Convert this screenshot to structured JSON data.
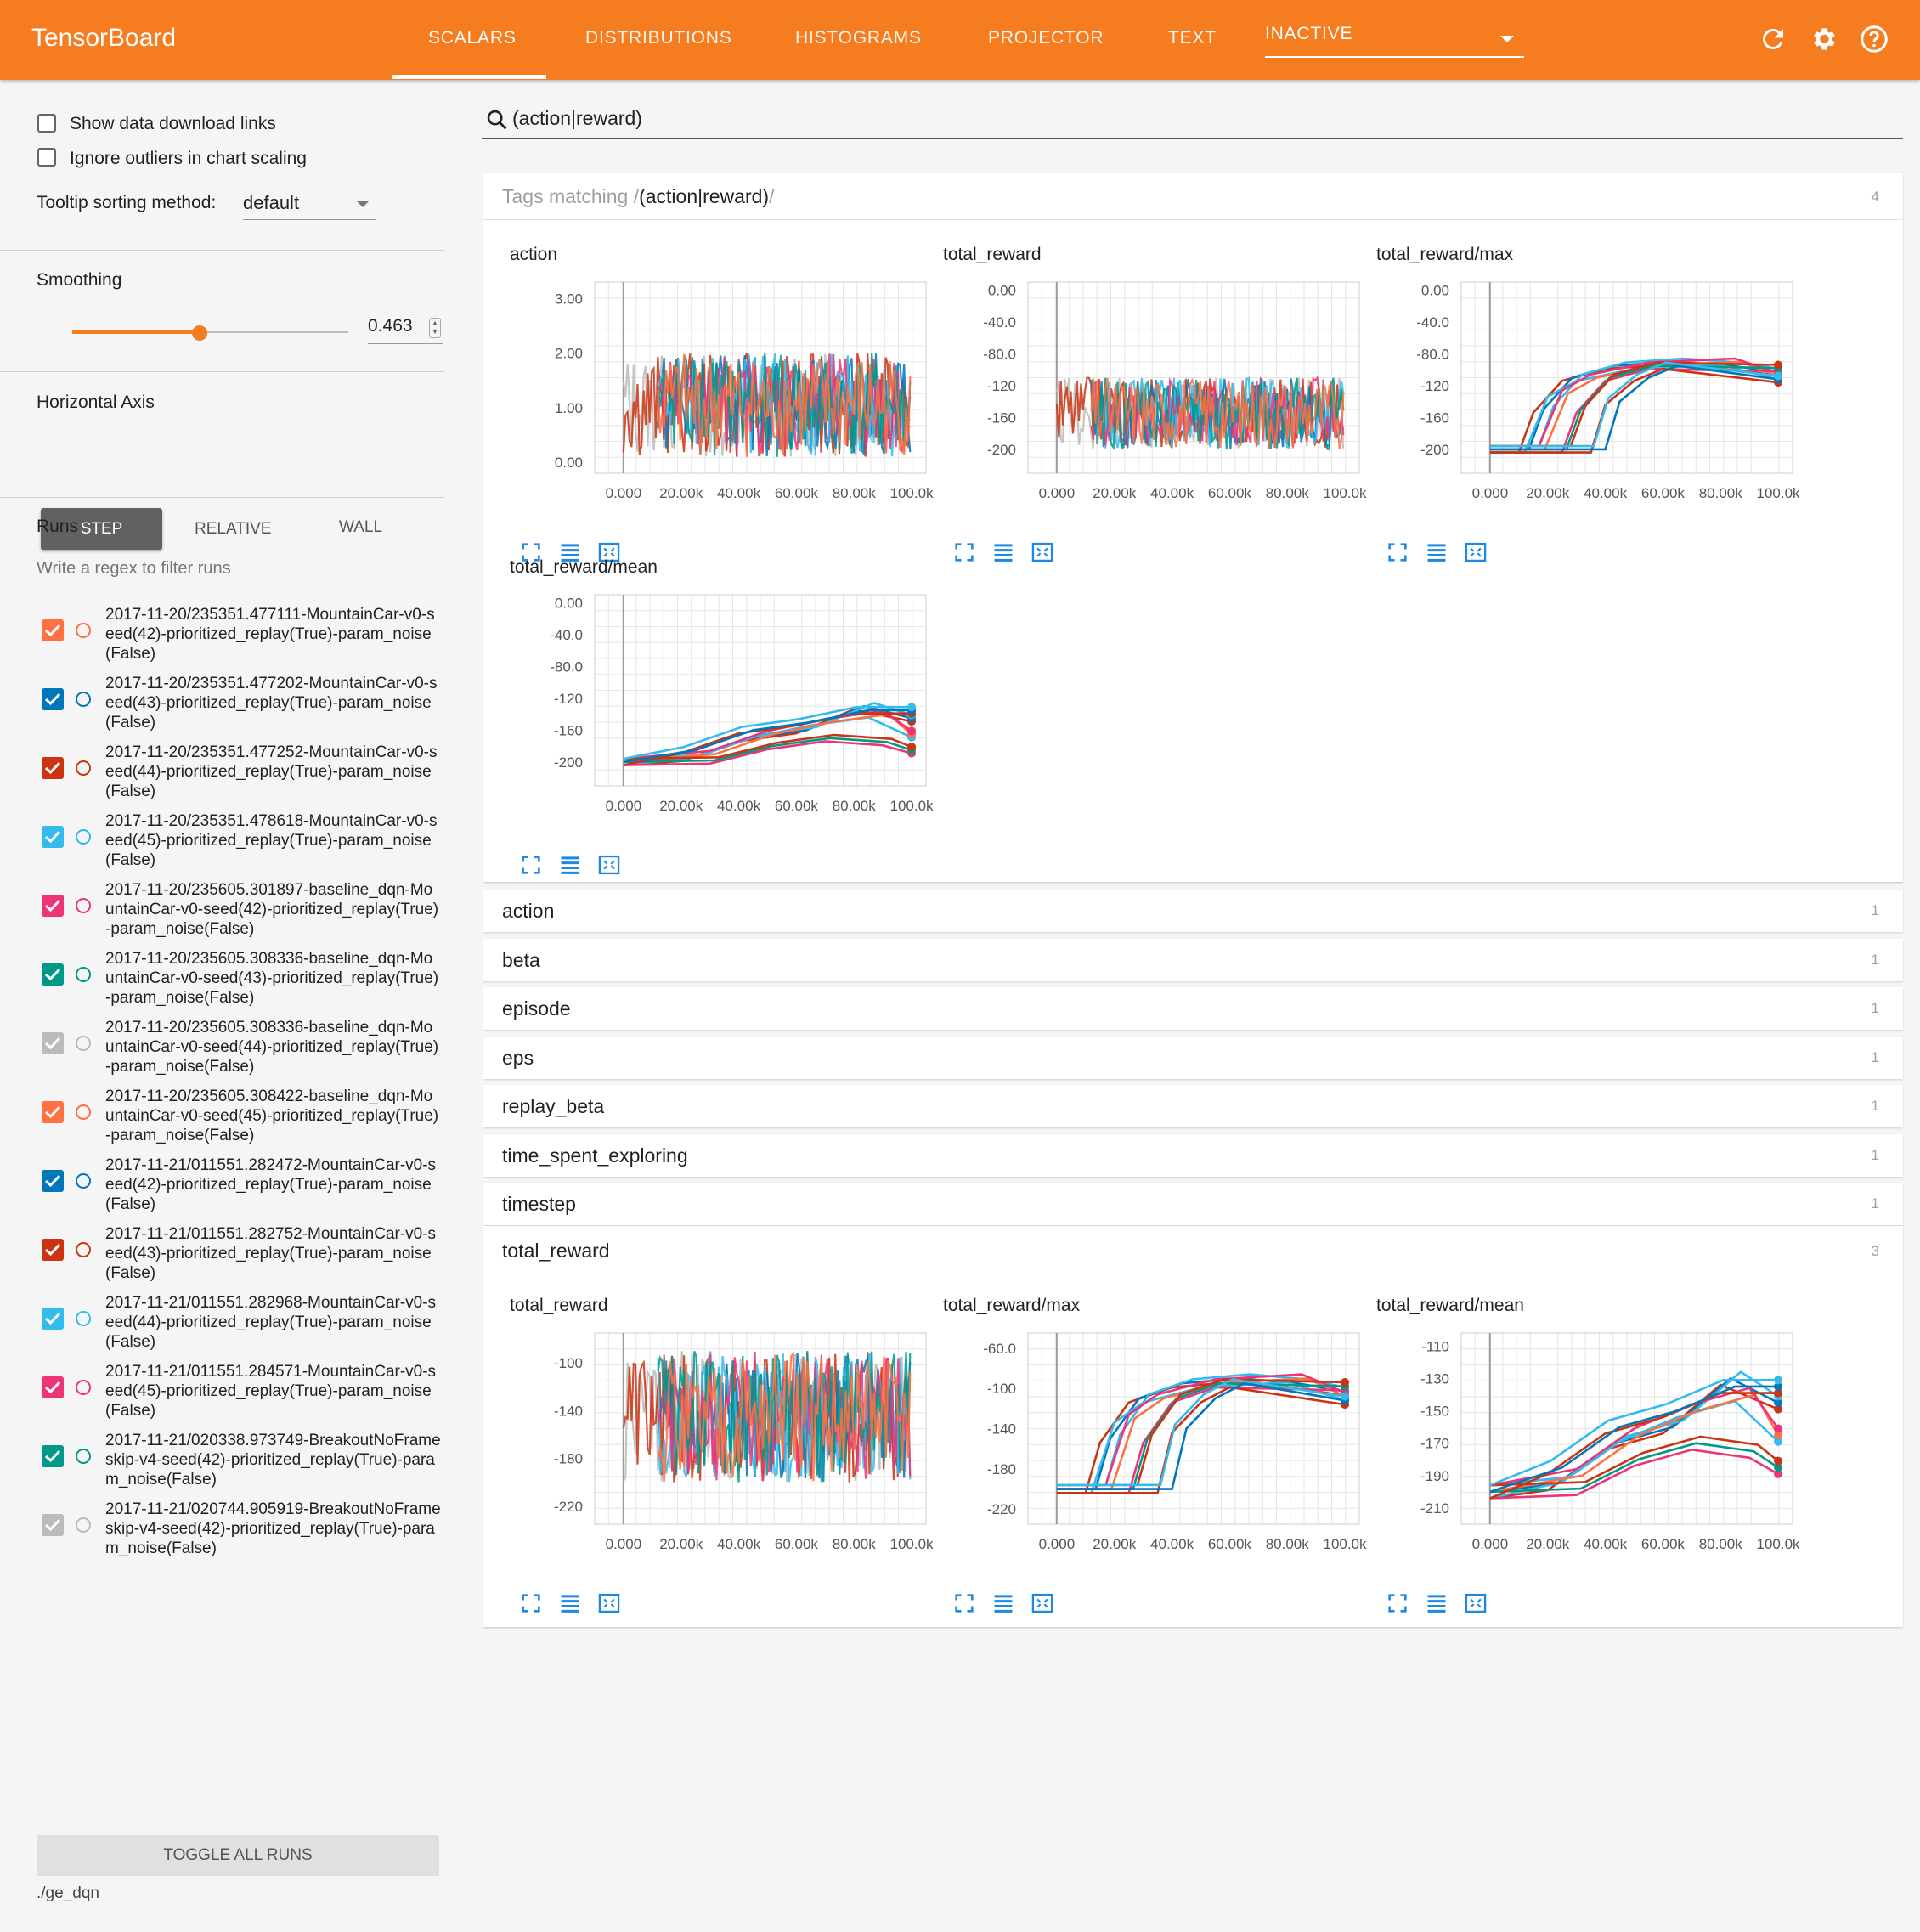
{
  "header": {
    "brand": "TensorBoard",
    "tabs": [
      "SCALARS",
      "DISTRIBUTIONS",
      "HISTOGRAMS",
      "PROJECTOR",
      "TEXT"
    ],
    "active_tab": "SCALARS",
    "inactive_label": "INACTIVE",
    "icons": [
      "refresh-icon",
      "settings-icon",
      "help-icon"
    ]
  },
  "sidebar": {
    "show_download_links": "Show data download links",
    "ignore_outliers": "Ignore outliers in chart scaling",
    "tooltip_label": "Tooltip sorting method:",
    "tooltip_value": "default",
    "smoothing_label": "Smoothing",
    "smoothing_value": "0.463",
    "smoothing_fraction": 0.463,
    "horizontal_axis_label": "Horizontal Axis",
    "axis_options": [
      "STEP",
      "RELATIVE",
      "WALL"
    ],
    "axis_selected": "STEP",
    "runs_label": "Runs",
    "runs_filter_placeholder": "Write a regex to filter runs",
    "runs": [
      {
        "name": "2017-11-20/235351.477111-MountainCar-v0-seed(42)-prioritized_replay(True)-param_noise(False)",
        "color": "#ff7043"
      },
      {
        "name": "2017-11-20/235351.477202-MountainCar-v0-seed(43)-prioritized_replay(True)-param_noise(False)",
        "color": "#0077bb"
      },
      {
        "name": "2017-11-20/235351.477252-MountainCar-v0-seed(44)-prioritized_replay(True)-param_noise(False)",
        "color": "#cc3311"
      },
      {
        "name": "2017-11-20/235351.478618-MountainCar-v0-seed(45)-prioritized_replay(True)-param_noise(False)",
        "color": "#33bbee"
      },
      {
        "name": "2017-11-20/235605.301897-baseline_dqn-MountainCar-v0-seed(42)-prioritized_replay(True)-param_noise(False)",
        "color": "#ee3377"
      },
      {
        "name": "2017-11-20/235605.308336-baseline_dqn-MountainCar-v0-seed(43)-prioritized_replay(True)-param_noise(False)",
        "color": "#009988"
      },
      {
        "name": "2017-11-20/235605.308336-baseline_dqn-MountainCar-v0-seed(44)-prioritized_replay(True)-param_noise(False)",
        "color": "#bbbbbb"
      },
      {
        "name": "2017-11-20/235605.308422-baseline_dqn-MountainCar-v0-seed(45)-prioritized_replay(True)-param_noise(False)",
        "color": "#ff7043"
      },
      {
        "name": "2017-11-21/011551.282472-MountainCar-v0-seed(42)-prioritized_replay(True)-param_noise(False)",
        "color": "#0077bb"
      },
      {
        "name": "2017-11-21/011551.282752-MountainCar-v0-seed(43)-prioritized_replay(True)-param_noise(False)",
        "color": "#cc3311"
      },
      {
        "name": "2017-11-21/011551.282968-MountainCar-v0-seed(44)-prioritized_replay(True)-param_noise(False)",
        "color": "#33bbee"
      },
      {
        "name": "2017-11-21/011551.284571-MountainCar-v0-seed(45)-prioritized_replay(True)-param_noise(False)",
        "color": "#ee3377"
      },
      {
        "name": "2017-11-21/020338.973749-BreakoutNoFrameskip-v4-seed(42)-prioritized_replay(True)-param_noise(False)",
        "color": "#009988"
      },
      {
        "name": "2017-11-21/020744.905919-BreakoutNoFrameskip-v4-seed(42)-prioritized_replay(True)-param_noise(False)",
        "color": "#bbbbbb"
      }
    ],
    "toggle_all": "TOGGLE ALL RUNS",
    "logdir": "./ge_dqn"
  },
  "main": {
    "search_value": "(action|reward)",
    "matching_prefix": "Tags matching /",
    "matching_regex": "(action|reward)",
    "matching_suffix": "/",
    "matching_count": "4",
    "groups": [
      {
        "name": "action",
        "count": "1"
      },
      {
        "name": "beta",
        "count": "1"
      },
      {
        "name": "episode",
        "count": "1"
      },
      {
        "name": "eps",
        "count": "1"
      },
      {
        "name": "replay_beta",
        "count": "1"
      },
      {
        "name": "time_spent_exploring",
        "count": "1"
      },
      {
        "name": "timestep",
        "count": "1"
      }
    ],
    "total_reward_group": {
      "name": "total_reward",
      "count": "3"
    }
  },
  "chart_data": [
    {
      "type": "line",
      "title": "action",
      "yticks": [
        "3.00",
        "2.00",
        "1.00",
        "0.00"
      ],
      "ylim": [
        -0.2,
        3.3
      ],
      "xticks": [
        "0.000",
        "20.00k",
        "40.00k",
        "60.00k",
        "80.00k",
        "100.0k"
      ],
      "xlim": [
        -10000,
        105000
      ],
      "noisy": true,
      "noise_range": [
        0.1,
        2.0
      ]
    },
    {
      "type": "line",
      "title": "total_reward",
      "yticks": [
        "0.00",
        "-40.0",
        "-80.0",
        "-120",
        "-160",
        "-200"
      ],
      "ylim": [
        -230,
        10
      ],
      "xticks": [
        "0.000",
        "20.00k",
        "40.00k",
        "60.00k",
        "80.00k",
        "100.0k"
      ],
      "xlim": [
        -10000,
        105000
      ],
      "noisy": true,
      "noise_range": [
        -200,
        -110
      ]
    },
    {
      "type": "line",
      "title": "total_reward/max",
      "yticks": [
        "0.00",
        "-40.0",
        "-80.0",
        "-120",
        "-160",
        "-200"
      ],
      "ylim": [
        -230,
        10
      ],
      "xticks": [
        "0.000",
        "20.00k",
        "40.00k",
        "60.00k",
        "80.00k",
        "100.0k"
      ],
      "xlim": [
        -10000,
        105000
      ],
      "series": [
        {
          "values": [
            [
              0,
              -200
            ],
            [
              10000,
              -200
            ],
            [
              15000,
              -150
            ],
            [
              25000,
              -110
            ],
            [
              40000,
              -95
            ],
            [
              60000,
              -90
            ],
            [
              80000,
              -95
            ],
            [
              100000,
              -103
            ]
          ]
        },
        {
          "values": [
            [
              0,
              -200
            ],
            [
              12000,
              -200
            ],
            [
              20000,
              -130
            ],
            [
              30000,
              -110
            ],
            [
              50000,
              -95
            ],
            [
              80000,
              -90
            ],
            [
              100000,
              -108
            ]
          ]
        },
        {
          "values": [
            [
              0,
              -200
            ],
            [
              25000,
              -200
            ],
            [
              30000,
              -150
            ],
            [
              40000,
              -110
            ],
            [
              55000,
              -95
            ],
            [
              100000,
              -98
            ]
          ]
        },
        {
          "values": [
            [
              0,
              -200
            ],
            [
              35000,
              -200
            ],
            [
              40000,
              -140
            ],
            [
              50000,
              -110
            ],
            [
              60000,
              -95
            ],
            [
              100000,
              -112
            ]
          ]
        }
      ]
    },
    {
      "type": "line",
      "title": "total_reward/mean",
      "yticks": [
        "0.00",
        "-40.0",
        "-80.0",
        "-120",
        "-160",
        "-200"
      ],
      "ylim": [
        -230,
        10
      ],
      "xticks": [
        "0.000",
        "20.00k",
        "40.00k",
        "60.00k",
        "80.00k",
        "100.0k"
      ],
      "xlim": [
        -10000,
        105000
      ],
      "series": [
        {
          "values": [
            [
              0,
              -200
            ],
            [
              20000,
              -195
            ],
            [
              40000,
              -170
            ],
            [
              60000,
              -160
            ],
            [
              80000,
              -130
            ],
            [
              100000,
              -145
            ]
          ]
        },
        {
          "values": [
            [
              0,
              -200
            ],
            [
              25000,
              -190
            ],
            [
              45000,
              -165
            ],
            [
              65000,
              -150
            ],
            [
              85000,
              -140
            ],
            [
              100000,
              -165
            ]
          ]
        },
        {
          "values": [
            [
              0,
              -200
            ],
            [
              30000,
              -198
            ],
            [
              50000,
              -180
            ],
            [
              70000,
              -170
            ],
            [
              90000,
              -175
            ],
            [
              100000,
              -185
            ]
          ]
        },
        {
          "values": [
            [
              0,
              -200
            ],
            [
              20000,
              -185
            ],
            [
              40000,
              -160
            ],
            [
              60000,
              -150
            ],
            [
              80000,
              -135
            ],
            [
              100000,
              -135
            ]
          ]
        }
      ]
    },
    {
      "type": "line",
      "title": "total_reward",
      "yticks": [
        "-100",
        "-140",
        "-180",
        "-220"
      ],
      "ylim": [
        -235,
        -75
      ],
      "xticks": [
        "0.000",
        "20.00k",
        "40.00k",
        "60.00k",
        "80.00k",
        "100.0k"
      ],
      "xlim": [
        -10000,
        105000
      ],
      "noisy": true,
      "noise_range": [
        -200,
        -90
      ]
    },
    {
      "type": "line",
      "title": "total_reward/max",
      "yticks": [
        "-60.0",
        "-100",
        "-140",
        "-180",
        "-220"
      ],
      "ylim": [
        -235,
        -45
      ],
      "xticks": [
        "0.000",
        "20.00k",
        "40.00k",
        "60.00k",
        "80.00k",
        "100.0k"
      ],
      "xlim": [
        -10000,
        105000
      ],
      "series": [
        {
          "values": [
            [
              0,
              -200
            ],
            [
              10000,
              -200
            ],
            [
              15000,
              -150
            ],
            [
              25000,
              -110
            ],
            [
              40000,
              -95
            ],
            [
              60000,
              -90
            ],
            [
              80000,
              -95
            ],
            [
              100000,
              -103
            ]
          ]
        },
        {
          "values": [
            [
              0,
              -200
            ],
            [
              12000,
              -200
            ],
            [
              20000,
              -130
            ],
            [
              30000,
              -110
            ],
            [
              50000,
              -95
            ],
            [
              80000,
              -90
            ],
            [
              100000,
              -108
            ]
          ]
        },
        {
          "values": [
            [
              0,
              -200
            ],
            [
              25000,
              -200
            ],
            [
              30000,
              -150
            ],
            [
              40000,
              -110
            ],
            [
              55000,
              -95
            ],
            [
              100000,
              -98
            ]
          ]
        },
        {
          "values": [
            [
              0,
              -200
            ],
            [
              35000,
              -200
            ],
            [
              40000,
              -140
            ],
            [
              50000,
              -110
            ],
            [
              60000,
              -95
            ],
            [
              100000,
              -112
            ]
          ]
        }
      ]
    },
    {
      "type": "line",
      "title": "total_reward/mean",
      "yticks": [
        "-110",
        "-130",
        "-150",
        "-170",
        "-190",
        "-210"
      ],
      "ylim": [
        -220,
        -102
      ],
      "xticks": [
        "0.000",
        "20.00k",
        "40.00k",
        "60.00k",
        "80.00k",
        "100.0k"
      ],
      "xlim": [
        -10000,
        105000
      ],
      "series": [
        {
          "values": [
            [
              0,
              -200
            ],
            [
              20000,
              -195
            ],
            [
              40000,
              -170
            ],
            [
              60000,
              -160
            ],
            [
              80000,
              -130
            ],
            [
              100000,
              -145
            ]
          ]
        },
        {
          "values": [
            [
              0,
              -200
            ],
            [
              25000,
              -190
            ],
            [
              45000,
              -165
            ],
            [
              65000,
              -150
            ],
            [
              85000,
              -140
            ],
            [
              100000,
              -165
            ]
          ]
        },
        {
          "values": [
            [
              0,
              -200
            ],
            [
              30000,
              -198
            ],
            [
              50000,
              -180
            ],
            [
              70000,
              -170
            ],
            [
              90000,
              -175
            ],
            [
              100000,
              -185
            ]
          ]
        },
        {
          "values": [
            [
              0,
              -200
            ],
            [
              20000,
              -185
            ],
            [
              40000,
              -160
            ],
            [
              60000,
              -150
            ],
            [
              80000,
              -135
            ],
            [
              100000,
              -135
            ]
          ]
        }
      ]
    }
  ]
}
